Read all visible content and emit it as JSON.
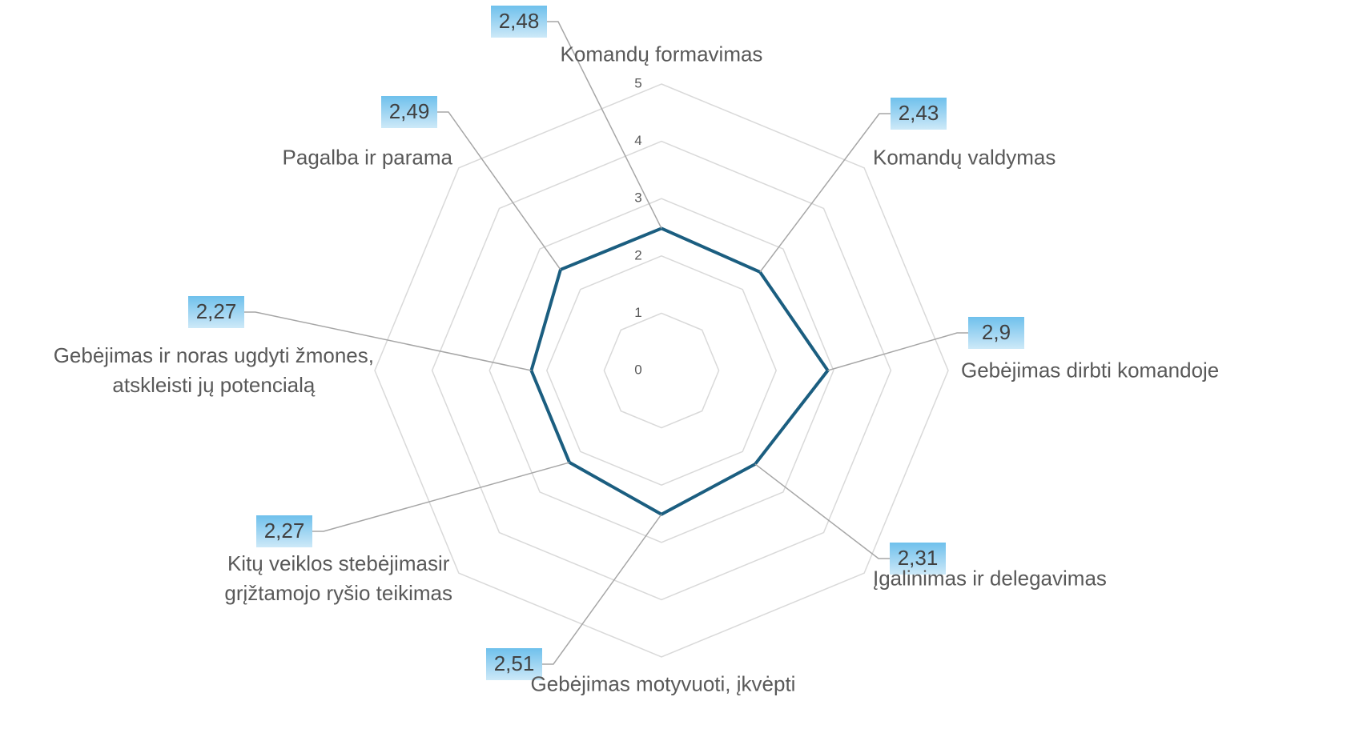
{
  "chart_data": {
    "type": "radar",
    "categories": [
      "Komandų formavimas",
      "Komandų valdymas",
      "Gebėjimas dirbti komandoje",
      "Įgalinimas ir delegavimas",
      "Gebėjimas motyvuoti, įkvėpti",
      "Kitų veiklos stebėjimasir\ngrįžtamojo ryšio teikimas",
      "Gebėjimas ir noras ugdyti žmones,\natskleisti jų potencialą",
      "Pagalba ir parama"
    ],
    "series": [
      {
        "name": null,
        "color": "#1b5e80",
        "values": [
          2.48,
          2.43,
          2.9,
          2.31,
          2.51,
          2.27,
          2.27,
          2.49
        ],
        "value_labels": [
          "2,48",
          "2,43",
          "2,9",
          "2,31",
          "2,51",
          "2,27",
          "2,27",
          "2,49"
        ]
      }
    ],
    "ylim": [
      0,
      5
    ],
    "yticks": [
      0,
      1,
      2,
      3,
      4,
      5
    ],
    "grid": true
  }
}
